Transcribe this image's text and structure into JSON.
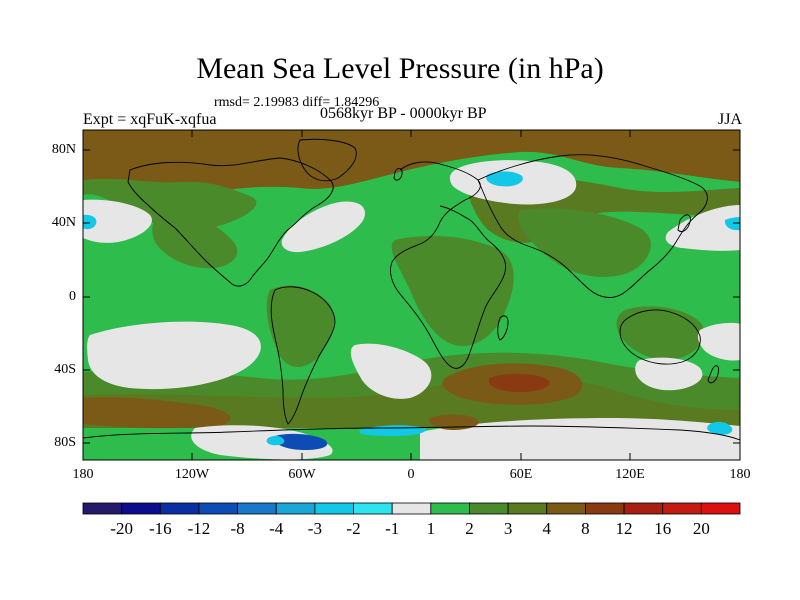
{
  "title": "Mean Sea Level Pressure (in hPa)",
  "stats": "rmsd= 2.19983 diff= 1.84296",
  "expt_label": "Expt = xqFuK-xqfua",
  "period_label": "0568kyr BP - 0000kyr BP",
  "season_label": "JJA",
  "lat_labels": [
    "80N",
    "40N",
    "0",
    "40S",
    "80S"
  ],
  "lon_labels": [
    "180",
    "120W",
    "60W",
    "0",
    "60E",
    "120E",
    "180"
  ],
  "colorbar": {
    "labels": [
      "-20",
      "-16",
      "-12",
      "-8",
      "-4",
      "-3",
      "-2",
      "-1",
      "1",
      "2",
      "3",
      "4",
      "8",
      "12",
      "16",
      "20"
    ],
    "colors": [
      "#231a6b",
      "#0c0c8f",
      "#0a2fa0",
      "#0c4cb4",
      "#1a78c9",
      "#1aa7d6",
      "#12c8e6",
      "#2ee4ef",
      "#e6e6e6",
      "#2ebc4c",
      "#4a8a2a",
      "#5a7a22",
      "#7a5a16",
      "#8a3a10",
      "#a81e10",
      "#c41a10",
      "#dd1010"
    ]
  },
  "colors": {
    "ocean_base": "#2ebc4c",
    "land_olive": "#4a8a2a",
    "dark_olive": "#5a7a22",
    "brown": "#7a5a16",
    "rust": "#8a3a10",
    "pale": "#e6e6e6",
    "cyan": "#12c8e6",
    "blue": "#0c4cb4"
  }
}
